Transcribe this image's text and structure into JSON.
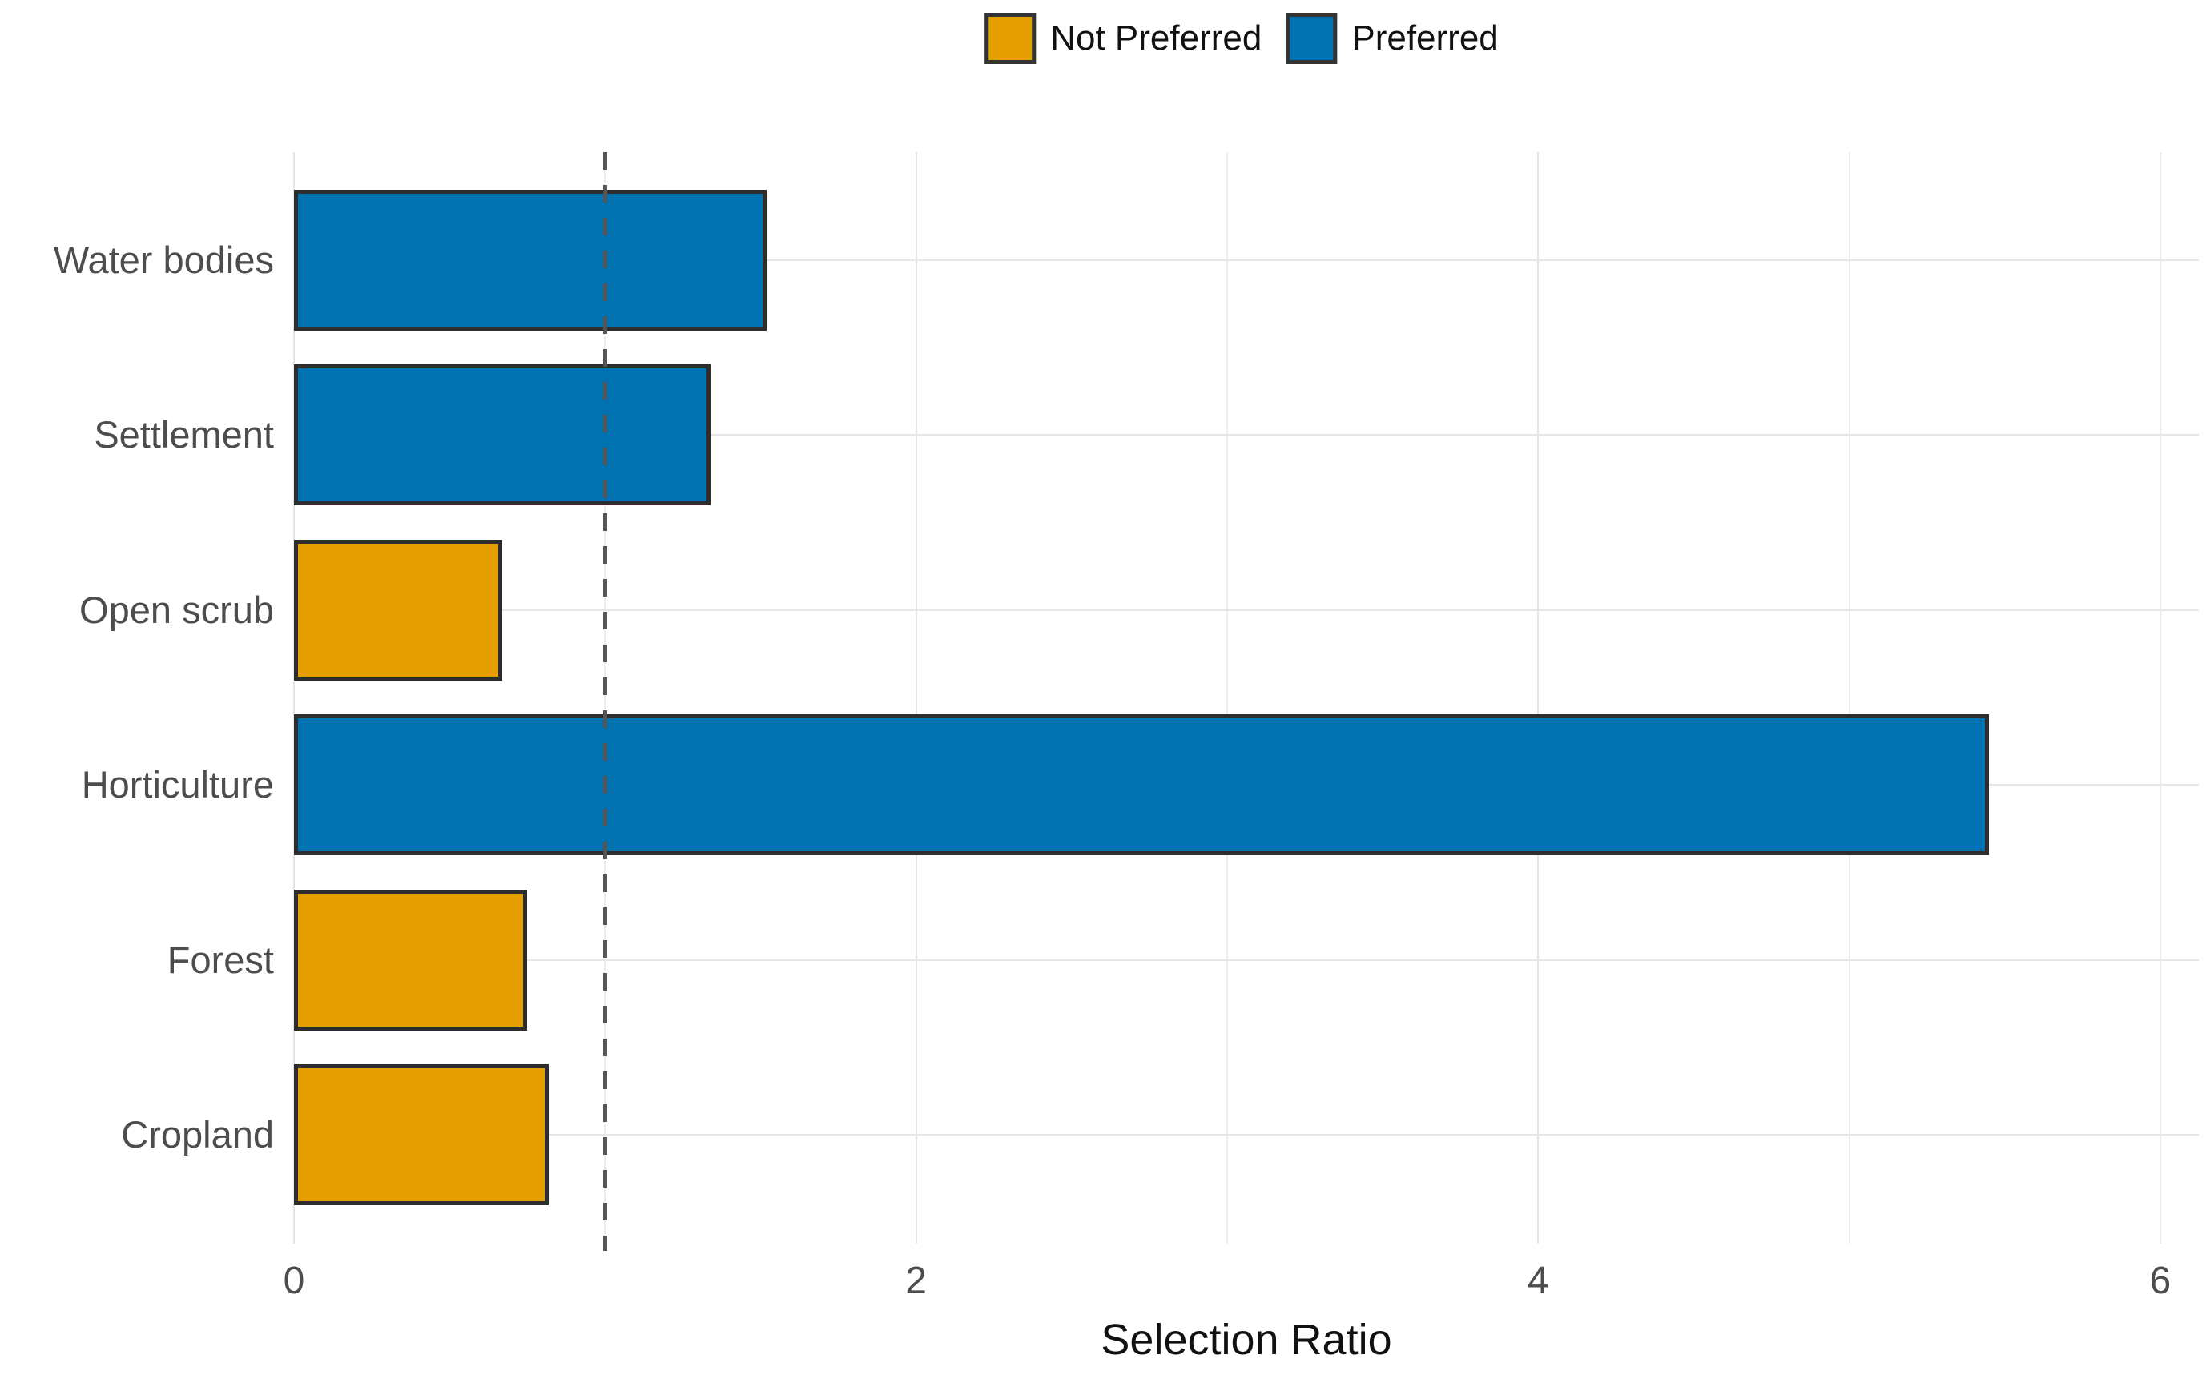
{
  "chart_data": {
    "type": "bar",
    "orientation": "horizontal",
    "title": "",
    "xlabel": "Selection Ratio",
    "ylabel": "",
    "categories": [
      "Water bodies",
      "Settlement",
      "Open scrub",
      "Horticulture",
      "Forest",
      "Cropland"
    ],
    "series": [
      {
        "name": "Selection Ratio",
        "values": [
          1.52,
          1.34,
          0.67,
          5.45,
          0.75,
          0.82
        ],
        "groups": [
          "Preferred",
          "Preferred",
          "Not Preferred",
          "Preferred",
          "Not Preferred",
          "Not Preferred"
        ]
      }
    ],
    "legend": [
      {
        "label": "Not Preferred",
        "color": "#E69F00"
      },
      {
        "label": "Preferred",
        "color": "#0072B2"
      }
    ],
    "legend_position": "top",
    "x_ticks": [
      0,
      2,
      4,
      6
    ],
    "x_minor_ticks": [
      1,
      3,
      5
    ],
    "xlim": [
      0,
      6.12
    ],
    "grid": true,
    "reference_line": {
      "x": 1,
      "style": "dashed",
      "color": "#555555"
    },
    "bar_border_color": "#2d2d2d",
    "colors": {
      "not_preferred": "#E69F00",
      "preferred": "#0072B2"
    }
  }
}
